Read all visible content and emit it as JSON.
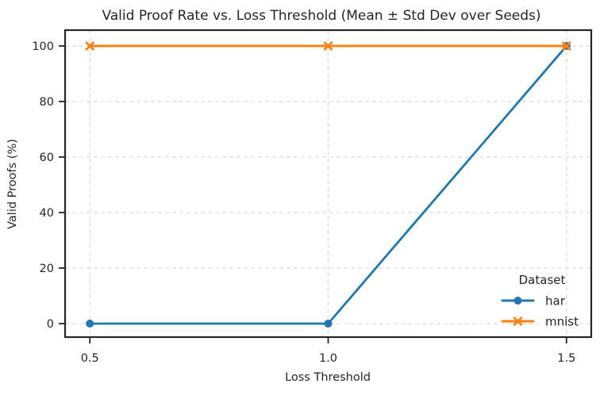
{
  "chart_data": {
    "type": "line",
    "title": "Valid Proof Rate vs. Loss Threshold (Mean ± Std Dev over Seeds)",
    "xlabel": "Loss Threshold",
    "ylabel": "Valid Proofs (%)",
    "x": [
      0.5,
      1.0,
      1.5
    ],
    "series": [
      {
        "name": "har",
        "values": [
          0,
          0,
          100
        ],
        "color": "#1f77b4",
        "marker": "circle"
      },
      {
        "name": "mnist",
        "values": [
          100,
          100,
          100
        ],
        "color": "#ff7f0e",
        "marker": "x"
      }
    ],
    "xticks": {
      "values": [
        0.5,
        1.0,
        1.5
      ],
      "labels": [
        "0.5",
        "1.0",
        "1.5"
      ]
    },
    "yticks": {
      "values": [
        0,
        20,
        40,
        60,
        80,
        100
      ],
      "labels": [
        "0",
        "20",
        "40",
        "60",
        "80",
        "100"
      ]
    },
    "xlim": [
      0.448,
      1.552
    ],
    "ylim": [
      -4.86,
      105.7
    ],
    "grid": {
      "visible": true,
      "style": "dashed",
      "color": "#dedede"
    },
    "legend": {
      "title": "Dataset",
      "position": "lower right",
      "frame": false
    },
    "colors": {
      "spine": "#262626",
      "text": "#262626",
      "grid": "#dedede",
      "background": "#ffffff"
    }
  }
}
